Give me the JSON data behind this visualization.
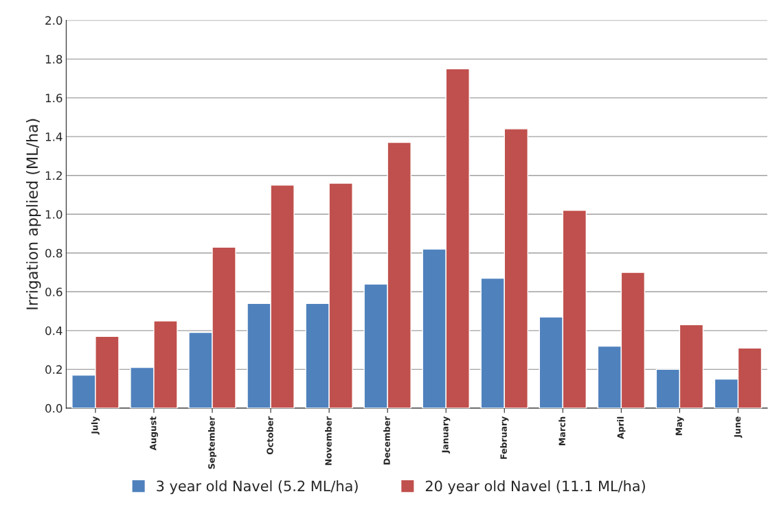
{
  "chart_data": {
    "type": "bar",
    "ylabel": "Irrigation applied (ML/ha)",
    "categories": [
      "July",
      "August",
      "September",
      "October",
      "November",
      "December",
      "January",
      "February",
      "March",
      "April",
      "May",
      "June"
    ],
    "series": [
      {
        "name": "3 year old Navel (5.2 ML/ha)",
        "color": "#4f81bd",
        "values": [
          0.17,
          0.21,
          0.39,
          0.54,
          0.54,
          0.64,
          0.82,
          0.67,
          0.47,
          0.32,
          0.2,
          0.15
        ]
      },
      {
        "name": "20 year old Navel (11.1 ML/ha)",
        "color": "#c0504d",
        "values": [
          0.37,
          0.45,
          0.83,
          1.15,
          1.16,
          1.37,
          1.75,
          1.44,
          1.02,
          0.7,
          0.43,
          0.31
        ]
      }
    ],
    "ylim": [
      0,
      2.0
    ],
    "yticks": [
      {
        "value": 0,
        "label": "0.0"
      },
      {
        "value": 0.2,
        "label": "0.2"
      },
      {
        "value": 0.4,
        "label": "0.4"
      },
      {
        "value": 0.6,
        "label": "0.6"
      },
      {
        "value": 0.8,
        "label": "0.8"
      },
      {
        "value": 1.0,
        "label": "1.0"
      },
      {
        "value": 1.2,
        "label": "1.2"
      },
      {
        "value": 1.4,
        "label": "1.4"
      },
      {
        "value": 1.6,
        "label": "1.6"
      },
      {
        "value": 1.8,
        "label": "1.8"
      },
      {
        "value": 2.0,
        "label": "2.0"
      }
    ],
    "grid": "y",
    "legend": "bottom"
  }
}
